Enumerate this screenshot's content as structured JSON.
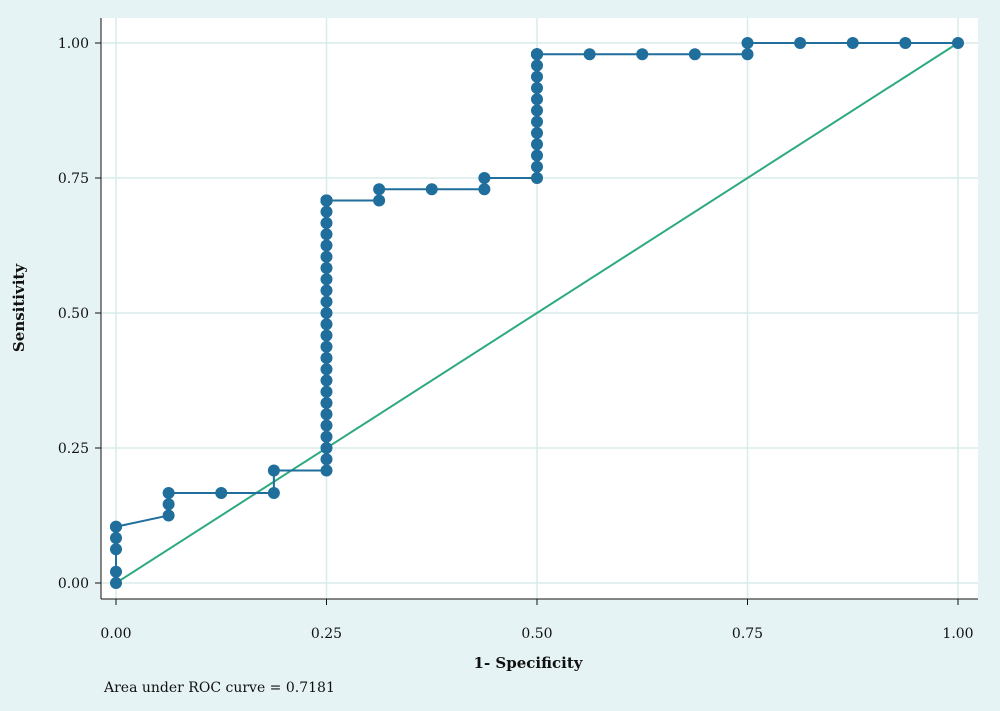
{
  "chart_data": {
    "type": "line",
    "xlabel": "1- Specificity",
    "ylabel": "Sensitivity",
    "xlim": [
      0,
      1
    ],
    "ylim": [
      0,
      1
    ],
    "x_ticks": [
      "0.00",
      "0.25",
      "0.50",
      "0.75",
      "1.00"
    ],
    "y_ticks": [
      "0.00",
      "0.25",
      "0.50",
      "0.75",
      "1.00"
    ],
    "grid": true,
    "annotation": "Area under ROC curve = 0.7181",
    "colors": {
      "roc": "#1f6e9c",
      "reference": "#2eaa7f",
      "grid": "#d8ecec",
      "axis": "#111111"
    },
    "series": [
      {
        "role": "roc",
        "x": [
          0,
          0,
          0,
          0,
          0,
          0,
          0.0625,
          0.0625,
          0.0625,
          0.125,
          0.1875,
          0.1875,
          0.25,
          0.25,
          0.25,
          0.25,
          0.25,
          0.25,
          0.25,
          0.25,
          0.25,
          0.25,
          0.25,
          0.25,
          0.25,
          0.25,
          0.25,
          0.25,
          0.25,
          0.25,
          0.25,
          0.25,
          0.25,
          0.25,
          0.25,
          0.25,
          0.25,
          0.25,
          0.25,
          0.25,
          0.25,
          0.25,
          0.25,
          0.25,
          0.25,
          0.25,
          0.3125,
          0.3125,
          0.375,
          0.4375,
          0.4375,
          0.5,
          0.5,
          0.5,
          0.5,
          0.5,
          0.5,
          0.5,
          0.5,
          0.5,
          0.5,
          0.5,
          0.5,
          0.5,
          0.5,
          0.5,
          0.5,
          0.5625,
          0.625,
          0.6875,
          0.75,
          0.75,
          0.8125,
          0.875,
          0.9375,
          1.0
        ],
        "y": [
          0,
          0.0208,
          0.0625,
          0.0833,
          0.1042,
          0.1042,
          0.125,
          0.1458,
          0.1667,
          0.1667,
          0.1667,
          0.2083,
          0.2083,
          0.2292,
          0.25,
          0.2708,
          0.2917,
          0.3125,
          0.3333,
          0.3542,
          0.375,
          0.3958,
          0.4167,
          0.4375,
          0.4583,
          0.4792,
          0.5,
          0.5208,
          0.5417,
          0.5625,
          0.5833,
          0.6042,
          0.625,
          0.6458,
          0.6667,
          0.6875,
          0.7083,
          0.7083,
          0.7083,
          0.7083,
          0.7083,
          0.7083,
          0.7083,
          0.7083,
          0.7083,
          0.7083,
          0.7083,
          0.7292,
          0.7292,
          0.7292,
          0.75,
          0.75,
          0.7708,
          0.7917,
          0.8125,
          0.8333,
          0.8542,
          0.875,
          0.8958,
          0.9167,
          0.9375,
          0.9583,
          0.9792,
          0.9792,
          0.9792,
          0.9792,
          0.9792,
          0.9792,
          0.9792,
          0.9792,
          0.9792,
          1.0,
          1.0,
          1.0,
          1.0,
          1.0
        ]
      },
      {
        "role": "reference",
        "x": [
          0,
          1
        ],
        "y": [
          0,
          1
        ]
      }
    ]
  }
}
